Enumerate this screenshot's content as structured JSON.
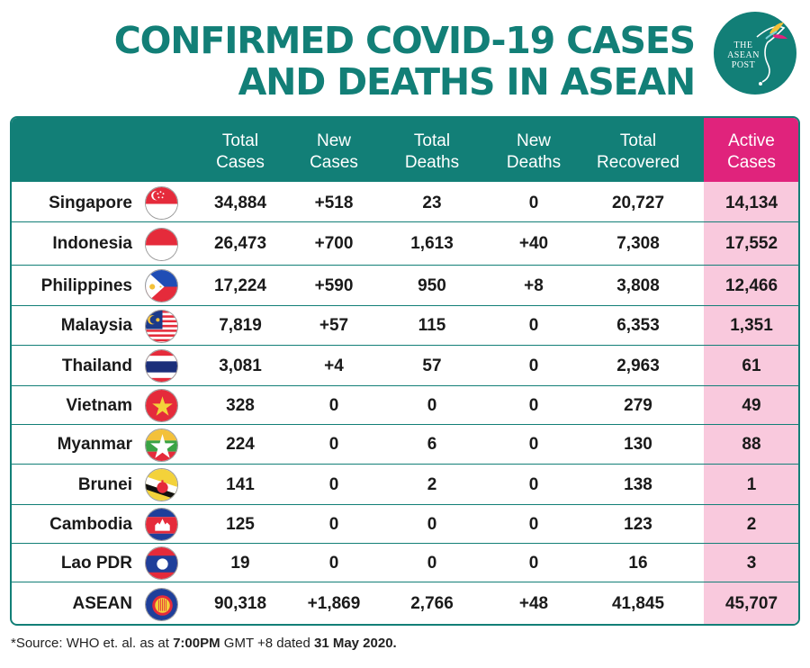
{
  "title": {
    "line1": "CONFIRMED COVID-19 CASES",
    "line2": "AND DEATHS IN ASEAN"
  },
  "logo": {
    "line1": "THE",
    "line2": "ASEAN",
    "line3": "POST"
  },
  "chart_data": {
    "type": "table",
    "columns": [
      {
        "line1": "Total",
        "line2": "Cases"
      },
      {
        "line1": "New",
        "line2": "Cases"
      },
      {
        "line1": "Total",
        "line2": "Deaths"
      },
      {
        "line1": "New",
        "line2": "Deaths"
      },
      {
        "line1": "Total",
        "line2": "Recovered"
      },
      {
        "line1": "Active",
        "line2": "Cases"
      }
    ],
    "rows": [
      {
        "country": "Singapore",
        "flag": "singapore-flag-icon",
        "values": [
          "34,884",
          "+518",
          "23",
          "0",
          "20,727",
          "14,134"
        ]
      },
      {
        "country": "Indonesia",
        "flag": "indonesia-flag-icon",
        "values": [
          "26,473",
          "+700",
          "1,613",
          "+40",
          "7,308",
          "17,552"
        ]
      },
      {
        "country": "Philippines",
        "flag": "philippines-flag-icon",
        "values": [
          "17,224",
          "+590",
          "950",
          "+8",
          "3,808",
          "12,466"
        ]
      },
      {
        "country": "Malaysia",
        "flag": "malaysia-flag-icon",
        "values": [
          "7,819",
          "+57",
          "115",
          "0",
          "6,353",
          "1,351"
        ]
      },
      {
        "country": "Thailand",
        "flag": "thailand-flag-icon",
        "values": [
          "3,081",
          "+4",
          "57",
          "0",
          "2,963",
          "61"
        ]
      },
      {
        "country": "Vietnam",
        "flag": "vietnam-flag-icon",
        "values": [
          "328",
          "0",
          "0",
          "0",
          "279",
          "49"
        ]
      },
      {
        "country": "Myanmar",
        "flag": "myanmar-flag-icon",
        "values": [
          "224",
          "0",
          "6",
          "0",
          "130",
          "88"
        ]
      },
      {
        "country": "Brunei",
        "flag": "brunei-flag-icon",
        "values": [
          "141",
          "0",
          "2",
          "0",
          "138",
          "1"
        ]
      },
      {
        "country": "Cambodia",
        "flag": "cambodia-flag-icon",
        "values": [
          "125",
          "0",
          "0",
          "0",
          "123",
          "2"
        ]
      },
      {
        "country": "Lao PDR",
        "flag": "laos-flag-icon",
        "values": [
          "19",
          "0",
          "0",
          "0",
          "16",
          "3"
        ]
      },
      {
        "country": "ASEAN",
        "flag": "asean-flag-icon",
        "values": [
          "90,318",
          "+1,869",
          "2,766",
          "+48",
          "41,845",
          "45,707"
        ]
      }
    ]
  },
  "source": {
    "prefix": "*Source: WHO et. al. as at ",
    "time": "7:00PM",
    "middle": " GMT +8 dated ",
    "date": "31 May 2020."
  },
  "colors": {
    "teal": "#127f77",
    "pink_header": "#e0237c",
    "pink_column": "#f9c9dd"
  }
}
